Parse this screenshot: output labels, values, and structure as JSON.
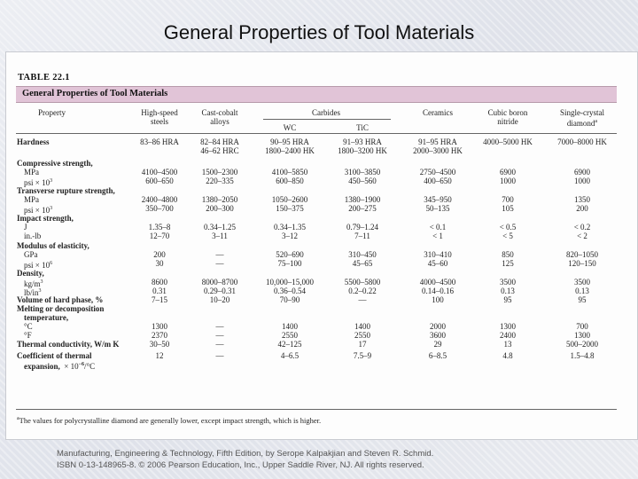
{
  "slide": {
    "title": "General Properties of Tool Materials",
    "credit_line1": "Manufacturing, Engineering & Technology, Fifth Edition, by Serope Kalpakjian and Steven R. Schmid.",
    "credit_line2": "ISBN 0-13-148965-8. © 2006 Pearson Education, Inc., Upper Saddle River, NJ.  All rights reserved."
  },
  "table": {
    "number": "TABLE 22.1",
    "title": "General Properties of Tool Materials",
    "headers": {
      "property": "Property",
      "hss": [
        "High-speed",
        "steels"
      ],
      "cast_cobalt": [
        "Cast-cobalt",
        "alloys"
      ],
      "carbides": "Carbides",
      "wc": "WC",
      "tic": "TiC",
      "ceramics": "Ceramics",
      "cbn": [
        "Cubic boron",
        "nitride"
      ],
      "diamond": [
        "Single-crystal",
        "diamond"
      ],
      "diamond_mark": "a"
    },
    "rows": [
      {
        "label": "Hardness",
        "bold": true,
        "values": [
          "83–86 HRA",
          "82–84 HRA",
          "90–95 HRA",
          "91–93 HRA",
          "91–95 HRA",
          "4000–5000 HK",
          "7000–8000 HK"
        ]
      },
      {
        "label": "",
        "bold": false,
        "values": [
          "",
          "46–62 HRC",
          "1800–2400 HK",
          "1800–3200 HK",
          "2000–3000 HK",
          "",
          ""
        ]
      },
      {
        "label": "Compressive strength,",
        "bold": true,
        "values": [
          "",
          "",
          "",
          "",
          "",
          "",
          ""
        ]
      },
      {
        "label": "MPa",
        "bold": false,
        "indent": true,
        "values": [
          "4100–4500",
          "1500–2300",
          "4100–5850",
          "3100–3850",
          "2750–4500",
          "6900",
          "6900"
        ]
      },
      {
        "label": "psi × 10",
        "sup": "3",
        "bold": false,
        "indent": true,
        "values": [
          "600–650",
          "220–335",
          "600–850",
          "450–560",
          "400–650",
          "1000",
          "1000"
        ]
      },
      {
        "label": "Transverse rupture strength,",
        "bold": true,
        "values": [
          "",
          "",
          "",
          "",
          "",
          "",
          ""
        ]
      },
      {
        "label": "MPa",
        "bold": false,
        "indent": true,
        "values": [
          "2400–4800",
          "1380–2050",
          "1050–2600",
          "1380–1900",
          "345–950",
          "700",
          "1350"
        ]
      },
      {
        "label": "psi × 10",
        "sup": "3",
        "bold": false,
        "indent": true,
        "values": [
          "350–700",
          "200–300",
          "150–375",
          "200–275",
          "50–135",
          "105",
          "200"
        ]
      },
      {
        "label": "Impact strength,",
        "bold": true,
        "values": [
          "",
          "",
          "",
          "",
          "",
          "",
          ""
        ]
      },
      {
        "label": "J",
        "bold": false,
        "indent": true,
        "values": [
          "1.35–8",
          "0.34–1.25",
          "0.34–1.35",
          "0.79–1.24",
          "< 0.1",
          "< 0.5",
          "< 0.2"
        ]
      },
      {
        "label": "in.-lb",
        "bold": false,
        "indent": true,
        "values": [
          "12–70",
          "3–11",
          "3–12",
          "7–11",
          "< 1",
          "< 5",
          "< 2"
        ]
      },
      {
        "label": "Modulus of elasticity,",
        "bold": true,
        "values": [
          "",
          "",
          "",
          "",
          "",
          "",
          ""
        ]
      },
      {
        "label": "GPa",
        "bold": false,
        "indent": true,
        "values": [
          "200",
          "—",
          "520–690",
          "310–450",
          "310–410",
          "850",
          "820–1050"
        ]
      },
      {
        "label": "psi × 10",
        "sup": "6",
        "bold": false,
        "indent": true,
        "values": [
          "30",
          "—",
          "75–100",
          "45–65",
          "45–60",
          "125",
          "120–150"
        ]
      },
      {
        "label": "Density,",
        "bold": true,
        "values": [
          "",
          "",
          "",
          "",
          "",
          "",
          ""
        ]
      },
      {
        "label": "kg/m",
        "sup": "3",
        "bold": false,
        "indent": true,
        "values": [
          "8600",
          "8000–8700",
          "10,000–15,000",
          "5500–5800",
          "4000–4500",
          "3500",
          "3500"
        ]
      },
      {
        "label": "lb/in",
        "sup": "3",
        "bold": false,
        "indent": true,
        "values": [
          "0.31",
          "0.29–0.31",
          "0.36–0.54",
          "0.2–0.22",
          "0.14–0.16",
          "0.13",
          "0.13"
        ]
      },
      {
        "label": "Volume of hard phase, %",
        "bold": true,
        "values": [
          "7–15",
          "10–20",
          "70–90",
          "—",
          "100",
          "95",
          "95"
        ]
      },
      {
        "label": "Melting or decomposition",
        "bold": true,
        "values": [
          "",
          "",
          "",
          "",
          "",
          "",
          ""
        ]
      },
      {
        "label": "temperature,",
        "bold": true,
        "indent": true,
        "values": [
          "",
          "",
          "",
          "",
          "",
          "",
          ""
        ]
      },
      {
        "label": "°C",
        "bold": false,
        "indent": true,
        "values": [
          "1300",
          "—",
          "1400",
          "1400",
          "2000",
          "1300",
          "700"
        ]
      },
      {
        "label": "°F",
        "bold": false,
        "indent": true,
        "values": [
          "2370",
          "—",
          "2550",
          "2550",
          "3600",
          "2400",
          "1300"
        ]
      },
      {
        "label": "Thermal conductivity, W/m K",
        "bold": true,
        "values": [
          "30–50",
          "—",
          "42–125",
          "17",
          "29",
          "13",
          "500–2000"
        ]
      },
      {
        "label": "Coefficient of thermal",
        "bold": true,
        "values": [
          "12",
          "—",
          "4–6.5",
          "7.5–9",
          "6–8.5",
          "4.8",
          "1.5–4.8"
        ]
      },
      {
        "label": "expansion,",
        "bold": true,
        "indent": true,
        "suffix": "× 10",
        "suffix_sup": "−6",
        "suffix_tail": "/°C",
        "values": [
          "",
          "",
          "",
          "",
          "",
          "",
          ""
        ]
      }
    ],
    "footnote_mark": "a",
    "footnote": "The values for polycrystalline diamond are generally lower, except impact strength, which is higher."
  }
}
